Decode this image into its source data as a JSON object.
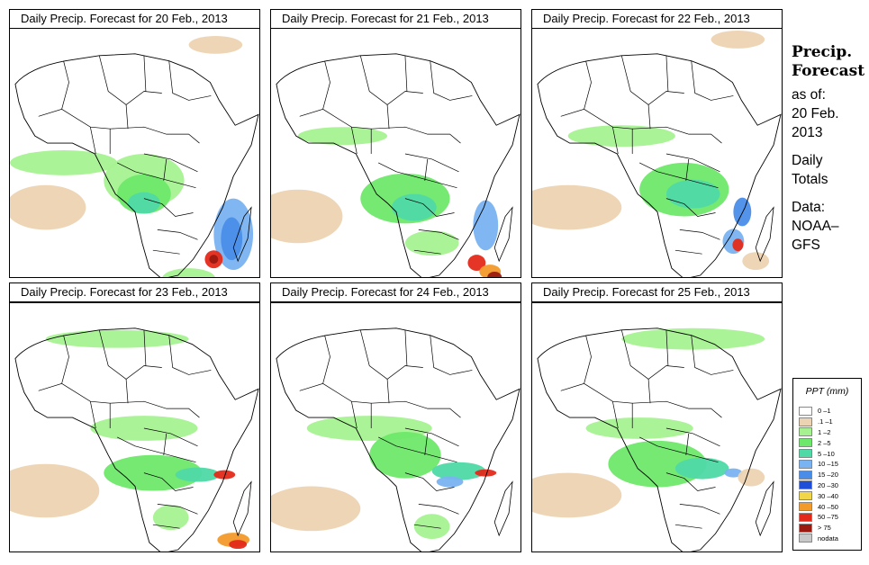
{
  "panels": [
    {
      "title": "Daily Precip. Forecast for  20 Feb., 2013"
    },
    {
      "title": "Daily Precip. Forecast for  21 Feb., 2013"
    },
    {
      "title": "Daily Precip. Forecast for  22 Feb., 2013"
    },
    {
      "title": "Daily Precip. Forecast for  23 Feb., 2013"
    },
    {
      "title": "Daily Precip. Forecast for  24 Feb., 2013"
    },
    {
      "title": "Daily Precip. Forecast for  25 Feb., 2013"
    }
  ],
  "side": {
    "title_line1": "Precip.",
    "title_line2": "Forecast",
    "asof_label": "as of:",
    "date_line1": "20 Feb.",
    "date_line2": "2013",
    "totals_line1": "Daily",
    "totals_line2": "Totals",
    "data_label": "Data:",
    "source_line1": "NOAA–",
    "source_line2": "GFS"
  },
  "legend": {
    "title": "PPT (mm)",
    "items": [
      {
        "label": "0 –1",
        "color": "#ffffff"
      },
      {
        "label": ".1 –1",
        "color": "#ecd3b1"
      },
      {
        "label": "1 –2",
        "color": "#a6f291"
      },
      {
        "label": "2 –5",
        "color": "#6ee86a"
      },
      {
        "label": "5 –10",
        "color": "#4fd9a6"
      },
      {
        "label": "10 –15",
        "color": "#79b3f2"
      },
      {
        "label": "15 –20",
        "color": "#4a8de8"
      },
      {
        "label": "20 –30",
        "color": "#1f4fd8"
      },
      {
        "label": "30 –40",
        "color": "#f2d64a"
      },
      {
        "label": "40 –50",
        "color": "#f29a2a"
      },
      {
        "label": "50 –75",
        "color": "#e32a1a"
      },
      {
        "label": "> 75",
        "color": "#9a1a10"
      },
      {
        "label": "nodata",
        "color": "#c8c8c8"
      }
    ]
  }
}
